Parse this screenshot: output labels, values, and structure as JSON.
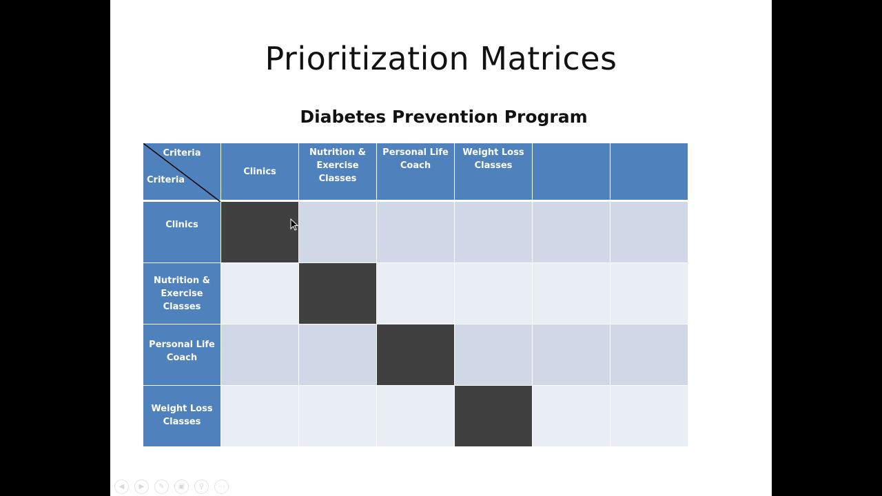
{
  "slide": {
    "title": "Prioritization Matrices",
    "subtitle": "Diabetes Prevention Program"
  },
  "matrix": {
    "corner": {
      "top_label": "Criteria",
      "left_label": "Criteria"
    },
    "columns": [
      "Clinics",
      "Nutrition & Exercise Classes",
      "Personal Life Coach",
      "Weight Loss Classes",
      "",
      ""
    ],
    "rows": [
      "Clinics",
      "Nutrition & Exercise Classes",
      "Personal Life Coach",
      "Weight Loss Classes"
    ]
  },
  "colors": {
    "header_blue": "#4f81bd",
    "row_band_dark": "#d0d8e8",
    "row_band_light": "#e9edf4",
    "diagonal_cell": "#404040",
    "background": "#000000"
  },
  "toolbar": {
    "icons": [
      "prev-slide-icon",
      "next-slide-icon",
      "pen-icon",
      "slides-grid-icon",
      "zoom-icon",
      "more-icon"
    ]
  }
}
